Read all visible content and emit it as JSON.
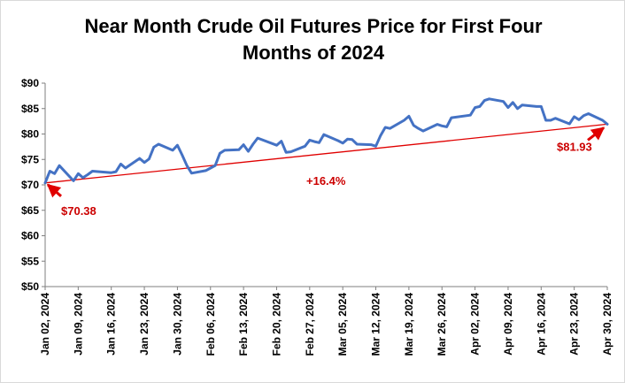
{
  "chart_data": {
    "type": "line",
    "title_line1": "Near Month Crude Oil Futures Price for First Four",
    "title_line2": "Months of 2024",
    "ylim": [
      50,
      90
    ],
    "yticks": [
      "$50",
      "$55",
      "$60",
      "$65",
      "$70",
      "$75",
      "$80",
      "$85",
      "$90"
    ],
    "xlim": [
      "2024-01-02",
      "2024-04-30"
    ],
    "xticks": [
      "Jan 02, 2024",
      "Jan 09, 2024",
      "Jan 16, 2024",
      "Jan 23, 2024",
      "Jan 30, 2024",
      "Feb 06, 2024",
      "Feb 13, 2024",
      "Feb 20, 2024",
      "Feb 27, 2024",
      "Mar 05, 2024",
      "Mar 12, 2024",
      "Mar 19, 2024",
      "Mar 26, 2024",
      "Apr 02, 2024",
      "Apr 09, 2024",
      "Apr 16, 2024",
      "Apr 23, 2024",
      "Apr 30, 2024"
    ],
    "grid": false,
    "series": [
      {
        "color": "#4472c4",
        "x": [
          "2024-01-02",
          "2024-01-03",
          "2024-01-04",
          "2024-01-05",
          "2024-01-08",
          "2024-01-09",
          "2024-01-10",
          "2024-01-11",
          "2024-01-12",
          "2024-01-16",
          "2024-01-17",
          "2024-01-18",
          "2024-01-19",
          "2024-01-22",
          "2024-01-23",
          "2024-01-24",
          "2024-01-25",
          "2024-01-26",
          "2024-01-29",
          "2024-01-30",
          "2024-01-31",
          "2024-02-01",
          "2024-02-02",
          "2024-02-05",
          "2024-02-06",
          "2024-02-07",
          "2024-02-08",
          "2024-02-09",
          "2024-02-12",
          "2024-02-13",
          "2024-02-14",
          "2024-02-15",
          "2024-02-16",
          "2024-02-20",
          "2024-02-21",
          "2024-02-22",
          "2024-02-23",
          "2024-02-26",
          "2024-02-27",
          "2024-02-28",
          "2024-02-29",
          "2024-03-01",
          "2024-03-04",
          "2024-03-05",
          "2024-03-06",
          "2024-03-07",
          "2024-03-08",
          "2024-03-11",
          "2024-03-12",
          "2024-03-13",
          "2024-03-14",
          "2024-03-15",
          "2024-03-18",
          "2024-03-19",
          "2024-03-20",
          "2024-03-21",
          "2024-03-22",
          "2024-03-25",
          "2024-03-26",
          "2024-03-27",
          "2024-03-28",
          "2024-04-01",
          "2024-04-02",
          "2024-04-03",
          "2024-04-04",
          "2024-04-05",
          "2024-04-08",
          "2024-04-09",
          "2024-04-10",
          "2024-04-11",
          "2024-04-12",
          "2024-04-15",
          "2024-04-16",
          "2024-04-17",
          "2024-04-18",
          "2024-04-19",
          "2024-04-22",
          "2024-04-23",
          "2024-04-24",
          "2024-04-25",
          "2024-04-26",
          "2024-04-29",
          "2024-04-30"
        ],
        "values": [
          70.38,
          72.7,
          72.2,
          73.8,
          70.8,
          72.2,
          71.4,
          72.0,
          72.7,
          72.4,
          72.6,
          74.1,
          73.3,
          75.2,
          74.4,
          75.1,
          77.4,
          78.0,
          76.8,
          77.8,
          75.9,
          73.8,
          72.3,
          72.8,
          73.3,
          73.8,
          76.2,
          76.8,
          76.9,
          77.9,
          76.6,
          78.0,
          79.2,
          77.8,
          78.6,
          76.4,
          76.5,
          77.6,
          78.8,
          78.5,
          78.3,
          79.9,
          78.7,
          78.2,
          79.0,
          78.9,
          78.0,
          77.9,
          77.6,
          79.7,
          81.3,
          81.1,
          82.7,
          83.5,
          81.7,
          81.1,
          80.6,
          81.9,
          81.6,
          81.4,
          83.2,
          83.7,
          85.2,
          85.4,
          86.6,
          86.9,
          86.4,
          85.2,
          86.2,
          85.0,
          85.7,
          85.4,
          85.4,
          82.7,
          82.7,
          83.1,
          82.0,
          83.4,
          82.8,
          83.6,
          84.0,
          82.7,
          81.93
        ]
      }
    ],
    "trendline": {
      "color": "#e00000",
      "x": [
        "2024-01-02",
        "2024-04-30"
      ],
      "values": [
        70.38,
        81.93
      ]
    },
    "annotations": {
      "start_label": "$70.38",
      "end_label": "$81.93",
      "change_label": "+16.4%"
    }
  }
}
